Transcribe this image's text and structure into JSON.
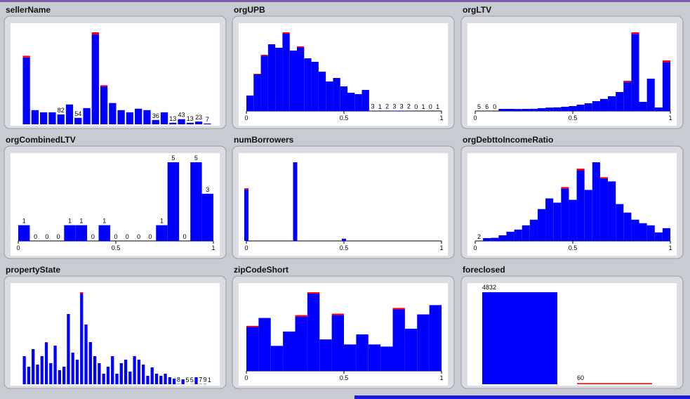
{
  "chart_data": [
    {
      "type": "bar",
      "title": "sellerName",
      "series": [
        {
          "color": "#0000ff",
          "values": [
            556,
            118,
            100,
            100,
            82,
            165,
            54,
            135,
            747,
            315,
            177,
            118,
            100,
            130,
            118,
            36,
            100,
            13,
            43,
            13,
            23,
            7
          ]
        },
        {
          "color": "#ff0000",
          "values": [
            14,
            0,
            0,
            0,
            0,
            0,
            0,
            0,
            18,
            10,
            0,
            0,
            0,
            0,
            0,
            0,
            0,
            0,
            0,
            0,
            0,
            0
          ]
        }
      ]
    },
    {
      "type": "histogram",
      "title": "orgUPB",
      "bins": [
        0,
        0.037,
        0.074,
        0.111,
        0.148,
        0.185,
        0.222,
        0.259,
        0.296,
        0.333,
        0.37,
        0.407,
        0.444,
        0.481,
        0.518,
        0.555,
        0.592,
        0.629,
        0.666,
        0.703,
        0.74,
        0.777,
        0.814,
        0.851,
        0.888,
        0.925,
        0.962,
        0.999
      ],
      "series": [
        {
          "color": "#0000ff",
          "values": [
            132,
            312,
            472,
            570,
            540,
            660,
            516,
            544,
            450,
            420,
            336,
            252,
            282,
            210,
            156,
            144,
            180,
            3,
            1,
            2,
            3,
            3,
            2,
            0,
            1,
            0,
            1
          ]
        },
        {
          "color": "#ff0000",
          "values": [
            0,
            6,
            8,
            0,
            0,
            12,
            0,
            8,
            0,
            0,
            0,
            0,
            0,
            0,
            0,
            0,
            0,
            0,
            0,
            0,
            0,
            0,
            0,
            0,
            0,
            0,
            0
          ]
        }
      ],
      "xlim": [
        0,
        1
      ],
      "xticks": [
        0,
        0.5,
        1
      ]
    },
    {
      "type": "histogram",
      "title": "orgLTV",
      "bins": [
        0,
        0.04,
        0.08,
        0.12,
        0.16,
        0.2,
        0.24,
        0.28,
        0.32,
        0.36,
        0.4,
        0.44,
        0.48,
        0.52,
        0.56,
        0.6,
        0.64,
        0.68,
        0.72,
        0.76,
        0.8,
        0.84,
        0.88,
        0.92,
        0.96,
        1
      ],
      "series": [
        {
          "color": "#0000ff",
          "values": [
            5,
            6,
            0,
            105,
            105,
            100,
            105,
            110,
            140,
            170,
            180,
            210,
            245,
            315,
            385,
            490,
            600,
            735,
            945,
            1435,
            3840,
            455,
            1610,
            175,
            2430
          ]
        },
        {
          "color": "#ff0000",
          "values": [
            0,
            0,
            0,
            0,
            0,
            0,
            0,
            0,
            0,
            0,
            0,
            0,
            0,
            0,
            0,
            0,
            0,
            0,
            0,
            70,
            80,
            0,
            0,
            0,
            90
          ]
        }
      ],
      "xlim": [
        0,
        1
      ],
      "xticks": [
        0,
        0.5,
        1
      ]
    },
    {
      "type": "histogram",
      "title": "orgCombinedLTV",
      "bins": [
        0,
        0.059,
        0.118,
        0.176,
        0.235,
        0.294,
        0.353,
        0.412,
        0.471,
        0.529,
        0.588,
        0.647,
        0.706,
        0.765,
        0.824,
        0.882,
        0.941,
        1
      ],
      "series": [
        {
          "color": "#0000ff",
          "values": [
            1,
            0,
            0,
            0,
            1,
            1,
            0,
            1,
            0,
            0,
            0,
            0,
            1,
            5,
            0,
            5,
            3
          ]
        }
      ],
      "xlim": [
        0,
        1
      ],
      "xticks": [
        0,
        0.5,
        1
      ]
    },
    {
      "type": "bar",
      "title": "numBorrowers",
      "x": [
        0,
        0.25,
        0.5
      ],
      "series": [
        {
          "color": "#0000ff",
          "values": [
            2565,
            3920,
            110
          ]
        },
        {
          "color": "#ff0000",
          "values": [
            60,
            0,
            0
          ]
        }
      ],
      "xlim": [
        0,
        1
      ],
      "xticks": [
        0,
        0.5,
        1
      ]
    },
    {
      "type": "histogram",
      "title": "orgDebttoIncomeRatio",
      "bins": [
        0,
        0.04,
        0.08,
        0.12,
        0.16,
        0.2,
        0.24,
        0.28,
        0.32,
        0.36,
        0.4,
        0.44,
        0.48,
        0.52,
        0.56,
        0.6,
        0.64,
        0.68,
        0.72,
        0.76,
        0.8,
        0.84,
        0.88,
        0.92,
        0.96,
        1
      ],
      "series": [
        {
          "color": "#0000ff",
          "values": [
            2,
            100,
            110,
            200,
            325,
            400,
            550,
            750,
            1125,
            1500,
            1350,
            1850,
            1450,
            2490,
            1800,
            2775,
            2210,
            2100,
            1300,
            1000,
            750,
            625,
            550,
            300,
            450
          ]
        },
        {
          "color": "#ff0000",
          "values": [
            0,
            0,
            0,
            0,
            0,
            0,
            0,
            0,
            0,
            0,
            0,
            50,
            0,
            60,
            0,
            0,
            40,
            0,
            0,
            0,
            0,
            0,
            0,
            0,
            0
          ]
        }
      ],
      "xlim": [
        0,
        1
      ],
      "xticks": [
        0,
        0.5,
        1
      ]
    },
    {
      "type": "bar",
      "title": "propertyState",
      "series": [
        {
          "color": "#0000ff",
          "values": [
            800,
            500,
            1000,
            560,
            800,
            1180,
            600,
            1100,
            400,
            500,
            2000,
            900,
            700,
            2580,
            1700,
            1200,
            800,
            600,
            300,
            500,
            800,
            300,
            600,
            700,
            360,
            800,
            700,
            560,
            240,
            480,
            300,
            240,
            300,
            200,
            160,
            8,
            140,
            5,
            5,
            200,
            7,
            9,
            1
          ]
        },
        {
          "color": "#ff0000",
          "values": [
            0,
            0,
            0,
            0,
            0,
            20,
            0,
            0,
            0,
            0,
            0,
            0,
            0,
            40,
            0,
            0,
            0,
            0,
            0,
            0,
            0,
            0,
            0,
            0,
            0,
            0,
            0,
            0,
            0,
            0,
            0,
            0,
            0,
            0,
            0,
            0,
            0,
            0,
            0,
            0,
            0,
            0,
            0
          ]
        }
      ]
    },
    {
      "type": "histogram",
      "title": "zipCodeShort",
      "bins": [
        0,
        0.0625,
        0.125,
        0.1875,
        0.25,
        0.3125,
        0.375,
        0.4375,
        0.5,
        0.5625,
        0.625,
        0.6875,
        0.75,
        0.8125,
        0.875,
        0.9375,
        1
      ],
      "series": [
        {
          "color": "#0000ff",
          "values": [
            615,
            740,
            350,
            550,
            760,
            1080,
            440,
            780,
            370,
            510,
            370,
            340,
            860,
            590,
            790,
            920
          ]
        },
        {
          "color": "#ff0000",
          "values": [
            15,
            0,
            0,
            0,
            20,
            20,
            0,
            20,
            0,
            0,
            0,
            0,
            20,
            0,
            0,
            0
          ]
        }
      ],
      "xlim": [
        0,
        1
      ],
      "xticks": [
        0,
        0.5,
        1
      ]
    },
    {
      "type": "bar",
      "title": "foreclosed",
      "categories": [
        null,
        null
      ],
      "values": [
        4832,
        60
      ],
      "colors": [
        "#0000ff",
        "#ff0000"
      ]
    }
  ]
}
